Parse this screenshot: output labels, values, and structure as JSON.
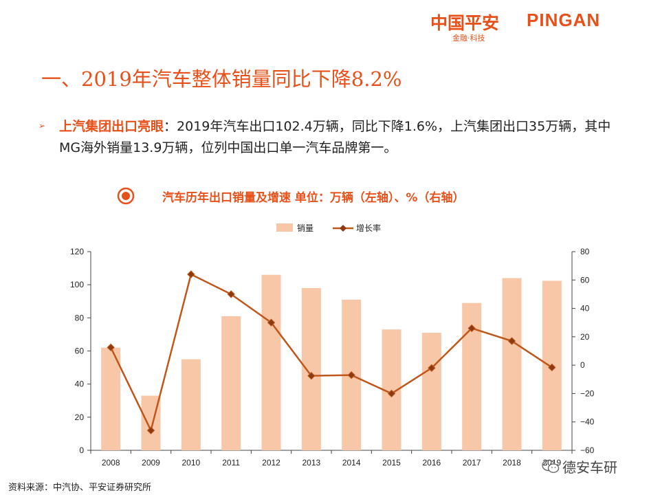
{
  "logo": {
    "cn": "中国平安",
    "en": "PINGAN",
    "sub": "金融·科技"
  },
  "title": "一、2019年汽车整体销量同比下降8.2%",
  "bullet": {
    "head": "上汽集团出口亮眼",
    "body": "：2019年汽车出口102.4万辆，同比下降1.6%，上汽集团出口35万辆，其中MG海外销量13.9万辆，位列中国出口单一汽车品牌第一。"
  },
  "chart_title": "汽车历年出口销量及增速 单位：万辆（左轴）、%（右轴）",
  "source": "资料来源：中汽协、平安证券研究所",
  "watermark": "德安车研",
  "colors": {
    "accent": "#e8501a",
    "bar": "#f7c7a8",
    "line": "#c0571a",
    "marker": "#8b3a12"
  },
  "chart_data": {
    "type": "bar+line",
    "categories": [
      "2008",
      "2009",
      "2010",
      "2011",
      "2012",
      "2013",
      "2014",
      "2015",
      "2016",
      "2017",
      "2018",
      "2019"
    ],
    "series": [
      {
        "name": "销量",
        "type": "bar",
        "axis": "left",
        "values": [
          62,
          33,
          55,
          81,
          106,
          98,
          91,
          73,
          71,
          89,
          104,
          102.4
        ]
      },
      {
        "name": "增长率",
        "type": "line",
        "axis": "right",
        "values": [
          12.5,
          -46,
          64,
          50,
          30,
          -7.5,
          -7,
          -20,
          -2,
          26,
          17,
          -1.6
        ]
      }
    ],
    "y_left": {
      "min": 0,
      "max": 120,
      "ticks": [
        0,
        20,
        40,
        60,
        80,
        100,
        120
      ]
    },
    "y_right": {
      "min": -60,
      "max": 80,
      "ticks": [
        "80",
        "60",
        "40",
        "20",
        "0",
        "−20",
        "−40",
        "−60"
      ]
    },
    "legend_position": "top-center"
  }
}
